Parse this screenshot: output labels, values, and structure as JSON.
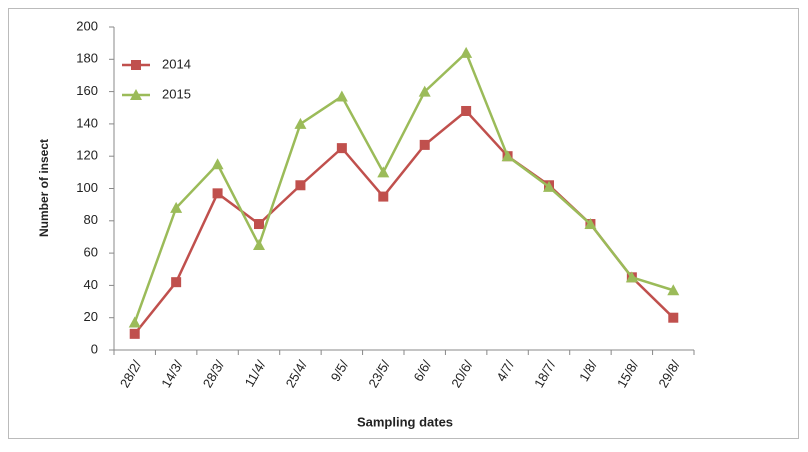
{
  "chart_data": {
    "type": "line",
    "x_label": "Sampling dates",
    "y_label": "Number of insect",
    "categories": [
      "28/2/",
      "14/3/",
      "28/3/",
      "11/4/",
      "25/4/",
      "9/5/",
      "23/5/",
      "6/6/",
      "20/6/",
      "4/7/",
      "18/7/",
      "1/8/",
      "15/8/",
      "29/8/"
    ],
    "series": [
      {
        "name": "2014",
        "color": "#c0504d",
        "marker": "square",
        "values": [
          10,
          42,
          97,
          78,
          102,
          125,
          95,
          127,
          148,
          120,
          102,
          78,
          45,
          20
        ]
      },
      {
        "name": "2015",
        "color": "#9bbb59",
        "marker": "triangle",
        "values": [
          17,
          88,
          115,
          65,
          140,
          157,
          110,
          160,
          184,
          120,
          101,
          78,
          45,
          37
        ]
      }
    ],
    "ylim": [
      0,
      200
    ],
    "yticks": [
      0,
      20,
      40,
      60,
      80,
      100,
      120,
      140,
      160,
      180,
      200
    ],
    "grid": false,
    "legend": "upper left"
  }
}
